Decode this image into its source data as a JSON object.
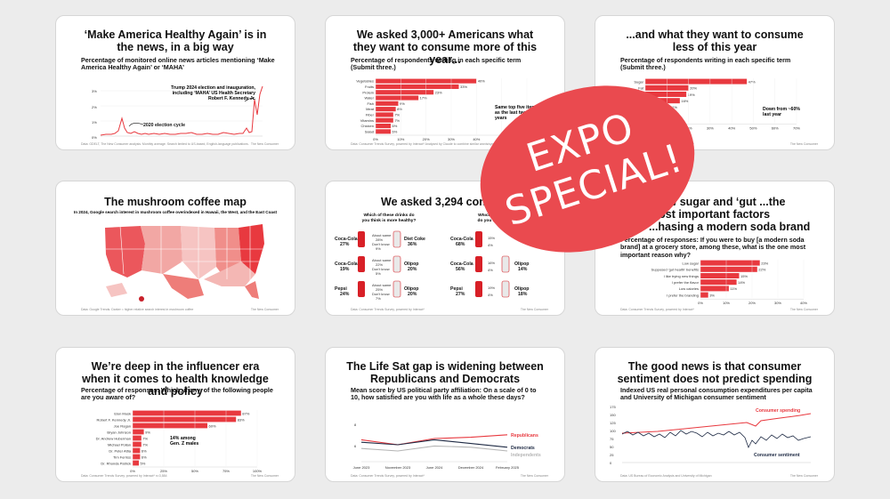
{
  "cards": [
    {
      "title": "‘Make America Healthy Again’ is in the news, in a big way",
      "subtitle": "Percentage of monitored online news articles mentioning ‘Make America Healthy Again’ or ‘MAHA’",
      "annotation_a": "2020 election cycle",
      "annotation_b": "Trump 2024 election and inauguration, including ‘MAHA’ US Health Secretary Robert F. Kennedy Jr.",
      "yticks": [
        "3%",
        "2%",
        "1%",
        "0%"
      ],
      "footnote": "Data: GDELT, The New Consumer analysis. Monthly average. Search limited to US-based, English-language publications."
    },
    {
      "title": "We asked 3,000+ Americans what they want to consume more of this year...",
      "subtitle": "Percentage of respondents writing in each specific term (Submit three.)",
      "annotation": "Same top five items as the last two years",
      "categories": [
        "Vegetables",
        "Fruits",
        "Protein",
        "Water",
        "Fish",
        "Meat",
        "Fiber",
        "Vitamins",
        "Chicken",
        "Salad"
      ],
      "values": [
        40,
        33,
        23,
        17,
        9,
        8,
        7,
        7,
        6,
        6
      ],
      "value_labels": [
        "40%",
        "33%",
        "23%",
        "17%",
        "9%",
        "8%",
        "7%",
        "7%",
        "6%",
        "6%"
      ],
      "xticks": [
        "0%",
        "10%",
        "20%",
        "30%",
        "40%",
        "50%",
        "60%"
      ],
      "footnote": "Data: Consumer Trends Survey, powered by Interact*   Analysed by Claude to combine similar words/synonyms, n=3,584"
    },
    {
      "title": "...and what they want to consume less of this year",
      "subtitle": "Percentage of respondents writing in each specific term (Submit three.)",
      "annotation": "Down from ~60% last year",
      "categories": [
        "Sugar",
        "Fat",
        "Salt",
        "Soda",
        "Candy",
        "Carbs",
        "Alcohol"
      ],
      "values": [
        47,
        20,
        19,
        16,
        11,
        10,
        8
      ],
      "value_labels": [
        "47%",
        "20%",
        "19%",
        "16%",
        "11%",
        "10%",
        "8%"
      ],
      "xticks": [
        "0%",
        "10%",
        "20%",
        "30%",
        "40%",
        "50%",
        "60%",
        "70%"
      ],
      "footnote": "Data: Consumer Trends Survey, powered by Interact*"
    },
    {
      "title": "The mushroom coffee map",
      "subtitle": "In 2024, Google search interest in mushroom coffee overindexed in Hawaii, the West, and the East Coast",
      "footnote": "Data: Google Trends. Darker = higher relative search interest in mushroom coffee"
    },
    {
      "title": "We asked 3,294 consumers...",
      "question_left": "Which of these drinks do you think is more healthy?",
      "question_right": "Which of these drinks do you think is more...",
      "rows": [
        {
          "left_brand": "Coca-Cola",
          "left_pct": "27%",
          "about": "About same",
          "about_pct": "28%",
          "dont": "Don't know",
          "dont_pct": "9%",
          "right_brand": "Diet Coke",
          "right_pct": "36%"
        },
        {
          "left_brand": "Coca-Cola",
          "left_pct": "19%",
          "about": "About same",
          "about_pct": "22%",
          "dont": "Don't know",
          "dont_pct": "5%",
          "right_brand": "Olipop",
          "right_pct": "20%"
        },
        {
          "left_brand": "Pepsi",
          "left_pct": "24%",
          "about": "About same",
          "about_pct": "25%",
          "dont": "Don't know",
          "dont_pct": "7%",
          "right_brand": "Olipop",
          "right_pct": "20%"
        }
      ],
      "rows2": [
        {
          "left_brand": "Coca-Cola",
          "left_pct": "68%",
          "about_pct": "15%",
          "dont_pct": "4%"
        },
        {
          "left_brand": "Coca-Cola",
          "left_pct": "56%",
          "about_pct": "16%",
          "dont_pct": "4%",
          "right_brand": "Olipop",
          "right_pct": "14%"
        },
        {
          "left_brand": "Pepsi",
          "left_pct": "27%",
          "about_pct": "19%",
          "dont_pct": "4%",
          "right_brand": "Olipop",
          "right_pct": "18%"
        }
      ],
      "footnote": "Data: Consumer Trends Survey, powered by Interact*"
    },
    {
      "title": "...low sugar and ‘gut ...the most important factors ...hasing a modern soda brand",
      "subtitle": "Percentage of responses: If you were to buy [a modern soda brand] at a grocery store, among these, what is the one most important reason why?",
      "categories": [
        "Low sugar",
        "Supposed ‘gut health’ benefits",
        "I like trying new things",
        "I prefer the flavor",
        "Low calories",
        "I prefer the branding"
      ],
      "values": [
        23,
        22,
        15,
        14,
        11,
        3
      ],
      "value_labels": [
        "23%",
        "22%",
        "15%",
        "14%",
        "11%",
        "3%"
      ],
      "xticks": [
        "0%",
        "10%",
        "20%",
        "30%",
        "40%"
      ],
      "footnote": "Data: Consumer Trends Survey, powered by Interact*"
    },
    {
      "title": "We’re deep in the influencer era when it comes to health knowledge and policy",
      "subtitle": "Percentage of responses: Which, if any, of the following people are you aware of?",
      "annotation": "14% among Gen. Z males",
      "categories": [
        "Elon Musk",
        "Robert F. Kennedy Jr.",
        "Joe Rogan",
        "Bryan Johnson",
        "Dr. Andrew Huberman",
        "Michael Pollan",
        "Dr. Peter Attia",
        "Tim Ferriss",
        "Dr. Rhonda Patrick"
      ],
      "values": [
        87,
        83,
        60,
        9,
        7,
        7,
        6,
        6,
        5
      ],
      "value_labels": [
        "87%",
        "83%",
        "60%",
        "9%",
        "7%",
        "7%",
        "6%",
        "6%",
        "5%"
      ],
      "xticks": [
        "0%",
        "25%",
        "50%",
        "75%",
        "100%"
      ],
      "footnote": "Data: Consumer Trends Survey, powered by Interact*   n=3,584"
    },
    {
      "title": "The Life Sat gap is widening between Republicans and Democrats",
      "subtitle": "Mean score by US political party affiliation: On a scale of 0 to 10, how satisfied are you with life as a whole these days?",
      "x": [
        "June 2023",
        "November 2023",
        "June 2024",
        "December 2024",
        "February 2025"
      ],
      "series": [
        {
          "name": "Republicans",
          "values": [
            6.9,
            6.5,
            7.0,
            7.1,
            7.3
          ]
        },
        {
          "name": "Democrats",
          "values": [
            6.7,
            6.5,
            6.9,
            6.6,
            6.3
          ]
        },
        {
          "name": "Independents",
          "values": [
            6.2,
            6.0,
            6.4,
            6.3,
            6.0
          ]
        }
      ],
      "yticks": [
        "8",
        "6"
      ],
      "footnote": "Data: Consumer Trends Survey, powered by Interact*"
    },
    {
      "title": "The good news is that consumer sentiment does not predict spending",
      "subtitle": "Indexed US real personal consumption expenditures per capita and University of Michigan consumer sentiment",
      "series_a": "Consumer spending",
      "series_b": "Consumer sentiment",
      "yticks": [
        "175",
        "150",
        "125",
        "100",
        "75",
        "50",
        "25",
        "0"
      ],
      "footnote": "Data: US Bureau of Economic Analysis and University of Michigan"
    }
  ],
  "footer_brand": "The New Consumer",
  "footer_brand2": "Coefficient",
  "overlay": {
    "line1": "EXPO",
    "line2": "SPECIAL!"
  },
  "colors": {
    "red": "#e8393f",
    "overlay": "#ea4a4f",
    "navy": "#1e2a44",
    "gray": "#b5b5b5"
  }
}
